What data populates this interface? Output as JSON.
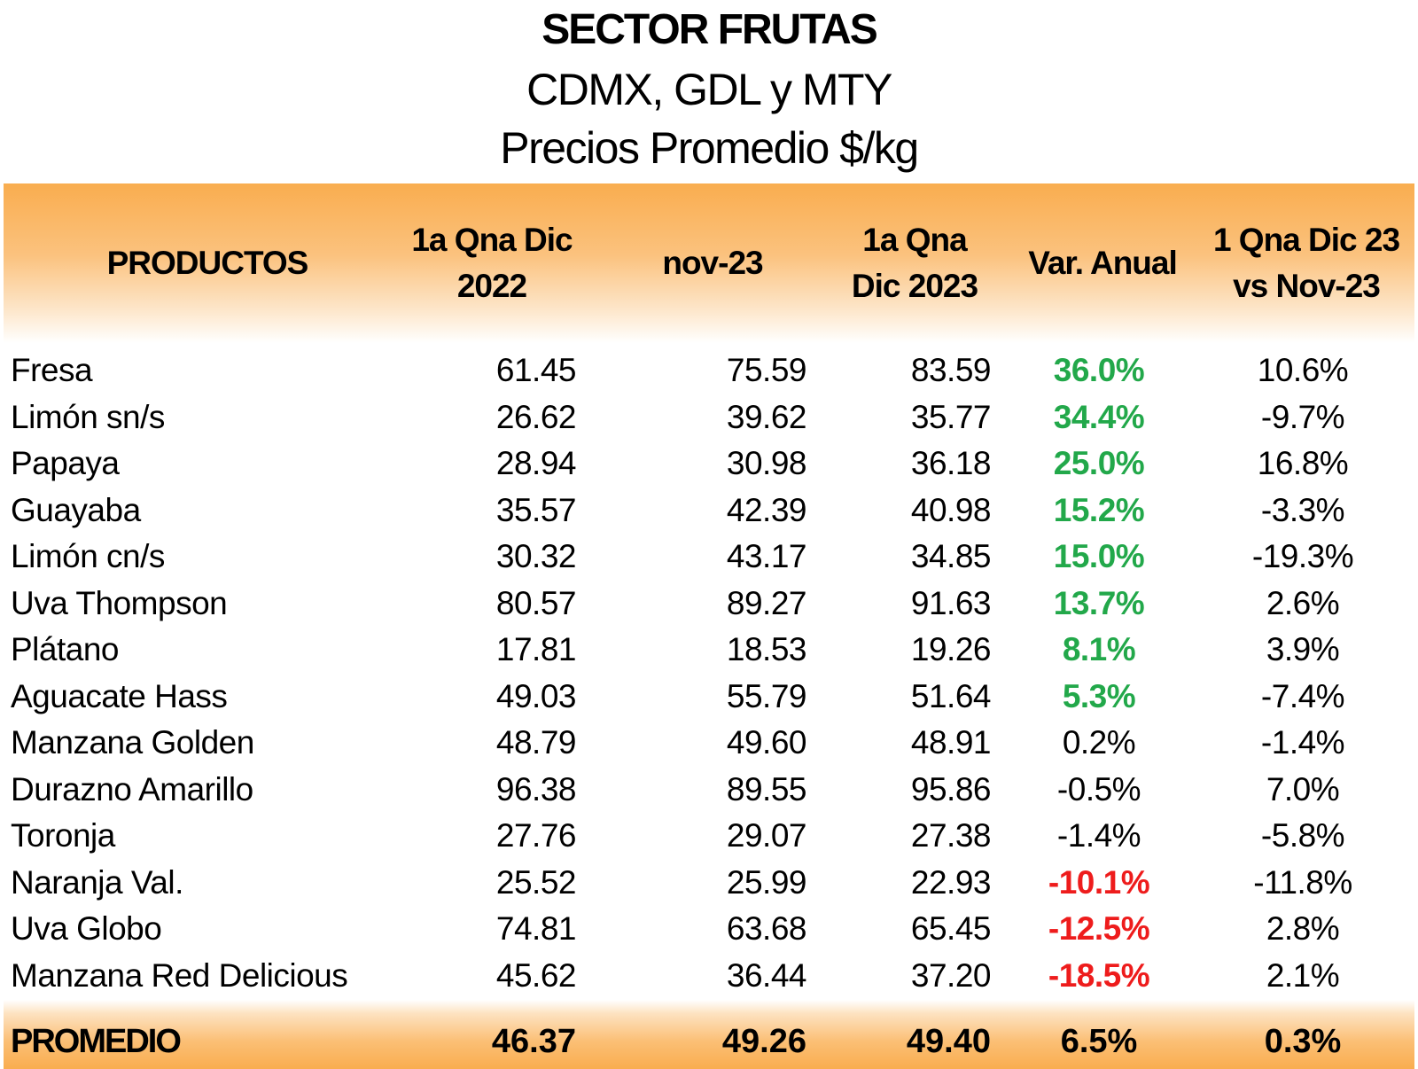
{
  "title": {
    "main": "SECTOR FRUTAS",
    "subtitle": "CDMX, GDL y MTY",
    "subtitle2": "Precios Promedio $/kg"
  },
  "columns": {
    "productos": "PRODUCTOS",
    "qna_dic_2022": "1a Qna Dic\n2022",
    "nov_23": "nov-23",
    "qna_dic_2023": "1a Qna\nDic 2023",
    "var_anual": "Var. Anual",
    "vs_nov": "1 Qna Dic 23\nvs Nov-23"
  },
  "colors": {
    "positive": "#22a84a",
    "negative": "#ee1c1c",
    "header_orange": "#f9ad4f"
  },
  "rows": [
    {
      "producto": "Fresa",
      "dic2022": "61.45",
      "nov23": "75.59",
      "dic2023": "83.59",
      "var": "36.0%",
      "var_class": "pos",
      "vs": "10.6%"
    },
    {
      "producto": "Limón sn/s",
      "dic2022": "26.62",
      "nov23": "39.62",
      "dic2023": "35.77",
      "var": "34.4%",
      "var_class": "pos",
      "vs": "-9.7%"
    },
    {
      "producto": "Papaya",
      "dic2022": "28.94",
      "nov23": "30.98",
      "dic2023": "36.18",
      "var": "25.0%",
      "var_class": "pos",
      "vs": "16.8%"
    },
    {
      "producto": "Guayaba",
      "dic2022": "35.57",
      "nov23": "42.39",
      "dic2023": "40.98",
      "var": "15.2%",
      "var_class": "pos",
      "vs": "-3.3%"
    },
    {
      "producto": "Limón cn/s",
      "dic2022": "30.32",
      "nov23": "43.17",
      "dic2023": "34.85",
      "var": "15.0%",
      "var_class": "pos",
      "vs": "-19.3%"
    },
    {
      "producto": "Uva Thompson",
      "dic2022": "80.57",
      "nov23": "89.27",
      "dic2023": "91.63",
      "var": "13.7%",
      "var_class": "pos",
      "vs": "2.6%"
    },
    {
      "producto": "Plátano",
      "dic2022": "17.81",
      "nov23": "18.53",
      "dic2023": "19.26",
      "var": "8.1%",
      "var_class": "pos",
      "vs": "3.9%"
    },
    {
      "producto": "Aguacate Hass",
      "dic2022": "49.03",
      "nov23": "55.79",
      "dic2023": "51.64",
      "var": "5.3%",
      "var_class": "pos",
      "vs": "-7.4%"
    },
    {
      "producto": "Manzana Golden",
      "dic2022": "48.79",
      "nov23": "49.60",
      "dic2023": "48.91",
      "var": "0.2%",
      "var_class": "neu",
      "vs": "-1.4%"
    },
    {
      "producto": "Durazno Amarillo",
      "dic2022": "96.38",
      "nov23": "89.55",
      "dic2023": "95.86",
      "var": "-0.5%",
      "var_class": "neu",
      "vs": "7.0%"
    },
    {
      "producto": "Toronja",
      "dic2022": "27.76",
      "nov23": "29.07",
      "dic2023": "27.38",
      "var": "-1.4%",
      "var_class": "neu",
      "vs": "-5.8%"
    },
    {
      "producto": "Naranja Val.",
      "dic2022": "25.52",
      "nov23": "25.99",
      "dic2023": "22.93",
      "var": "-10.1%",
      "var_class": "neg",
      "vs": "-11.8%"
    },
    {
      "producto": "Uva Globo",
      "dic2022": "74.81",
      "nov23": "63.68",
      "dic2023": "65.45",
      "var": "-12.5%",
      "var_class": "neg",
      "vs": "2.8%"
    },
    {
      "producto": "Manzana Red Delicious",
      "dic2022": "45.62",
      "nov23": "36.44",
      "dic2023": "37.20",
      "var": "-18.5%",
      "var_class": "neg",
      "vs": "2.1%"
    }
  ],
  "promedio": {
    "label": "PROMEDIO",
    "dic2022": "46.37",
    "nov23": "49.26",
    "dic2023": "49.40",
    "var": "6.5%",
    "vs": "0.3%"
  }
}
